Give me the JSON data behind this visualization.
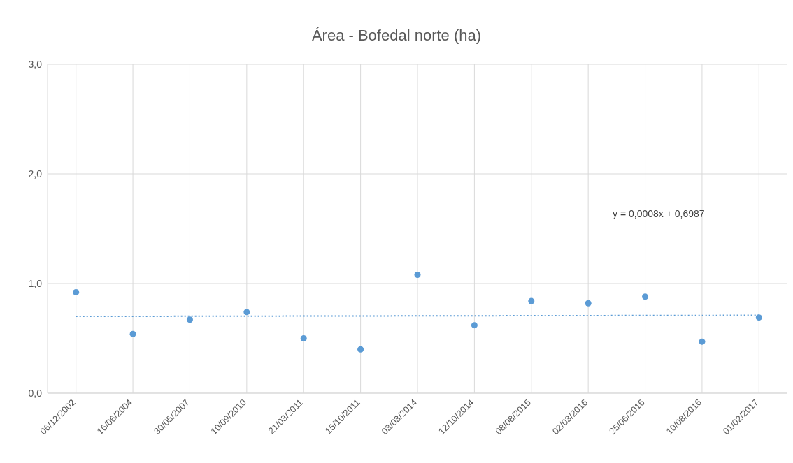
{
  "chart_data": {
    "type": "scatter",
    "title": "Área - Bofedal norte (ha)",
    "categories": [
      "06/12/2002",
      "16/06/2004",
      "30/05/2007",
      "10/09/2010",
      "21/03/2011",
      "15/10/2011",
      "03/03/2014",
      "12/10/2014",
      "08/08/2015",
      "02/03/2016",
      "25/06/2016",
      "10/08/2016",
      "01/02/2017"
    ],
    "series": [
      {
        "marker": "circle",
        "color": "#5b9bd5",
        "values": [
          0.92,
          0.54,
          0.67,
          0.74,
          0.5,
          0.4,
          1.08,
          0.62,
          0.84,
          0.82,
          0.88,
          0.47,
          0.69
        ]
      },
      {
        "type": "line",
        "marker": "none",
        "color": "#5b9bd5",
        "line_style": "dotted",
        "values": [
          0.7,
          null,
          null,
          null,
          null,
          null,
          null,
          null,
          null,
          null,
          null,
          null,
          0.71
        ]
      }
    ],
    "ylim": [
      0,
      3
    ],
    "yticks": [
      {
        "value": 0,
        "label": "0,0"
      },
      {
        "value": 1,
        "label": "1,0"
      },
      {
        "value": 2,
        "label": "2,0"
      },
      {
        "value": 3,
        "label": "3,0"
      }
    ],
    "grid": true,
    "annotations": [
      "y = 0,0008x + 0,6987"
    ]
  }
}
